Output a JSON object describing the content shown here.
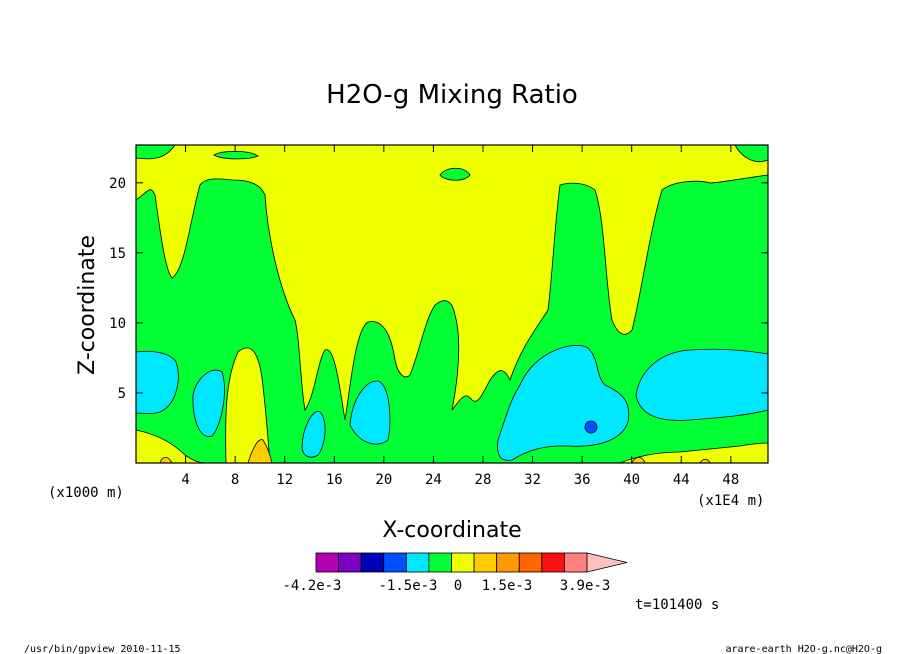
{
  "chart_data": {
    "type": "heatmap",
    "subtype": "filled-contour",
    "title": "H2O-g Mixing Ratio",
    "xlabel": "X-coordinate",
    "ylabel": "Z-coordinate",
    "x_unit_label": "(x1E4 m)",
    "y_unit_label": "(x1000 m)",
    "xlim": [
      0,
      51
    ],
    "ylim": [
      0,
      22.7
    ],
    "x_ticks": [
      4,
      8,
      12,
      16,
      20,
      24,
      28,
      32,
      36,
      40,
      44,
      48
    ],
    "y_ticks": [
      5,
      10,
      15,
      20
    ],
    "colorbar": {
      "colors": [
        "#b300b3",
        "#7a00c4",
        "#0000b8",
        "#0050ff",
        "#00e8ff",
        "#00ff33",
        "#eeff00",
        "#ffcc00",
        "#ff9900",
        "#ff6600",
        "#ff1010",
        "#ff7f7f",
        "#ffbfbf"
      ],
      "labels": [
        "-4.2e-3",
        "-1.5e-3",
        "0",
        "1.5e-3",
        "3.9e-3"
      ],
      "extend": "max"
    },
    "time_label": "t=101400 s",
    "region_colors": {
      "background": "#eeff00",
      "moist": "#00ff33",
      "moister": "#00e8ff",
      "wettest": "#0050ff",
      "dry": "#ffcc00"
    }
  },
  "footer": {
    "left": "/usr/bin/gpview  2010-11-15",
    "right": "arare-earth_H2O-g.nc@H2O-g"
  }
}
